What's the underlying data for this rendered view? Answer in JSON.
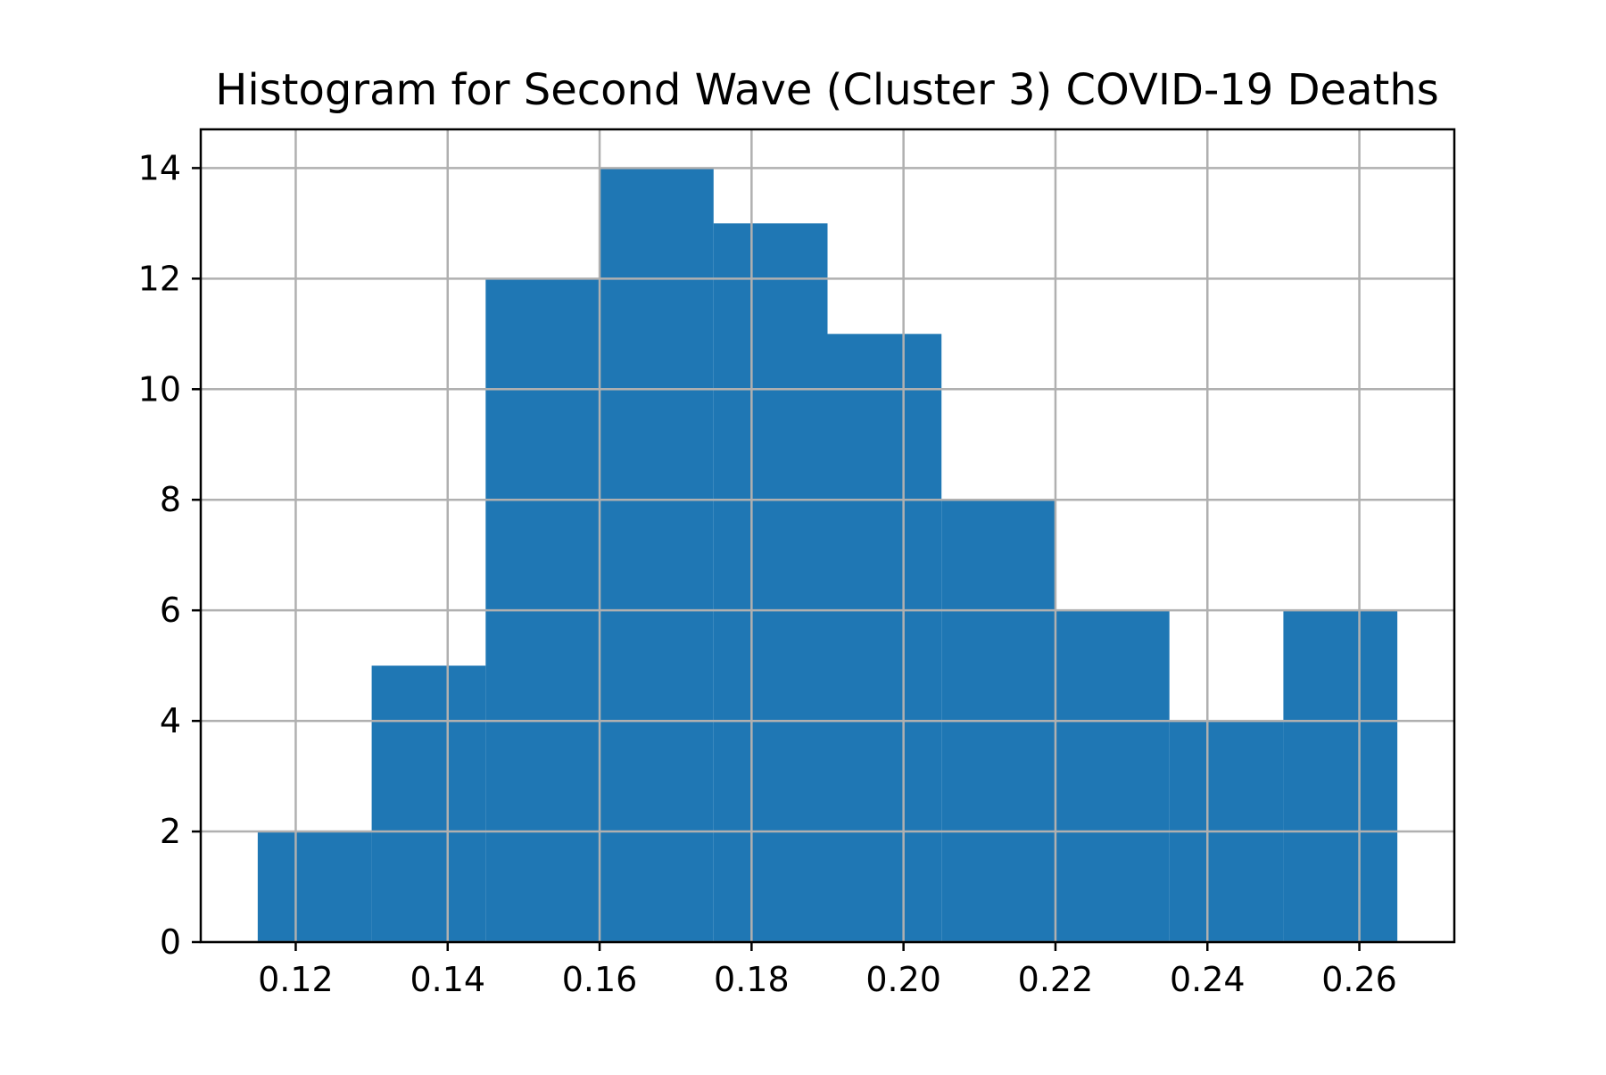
{
  "chart_data": {
    "type": "bar",
    "title": "Histogram for Second Wave (Cluster 3) COVID-19 Deaths",
    "xlabel": "",
    "ylabel": "",
    "bin_edges": [
      0.115,
      0.13,
      0.145,
      0.16,
      0.175,
      0.19,
      0.205,
      0.22,
      0.235,
      0.25,
      0.265
    ],
    "values": [
      2,
      5,
      12,
      14,
      13,
      11,
      8,
      6,
      4,
      6
    ],
    "xlim": [
      0.1075,
      0.2725
    ],
    "ylim": [
      0,
      14.7
    ],
    "xticks": [
      0.12,
      0.14,
      0.16,
      0.18,
      0.2,
      0.22,
      0.24,
      0.26
    ],
    "xtick_labels": [
      "0.12",
      "0.14",
      "0.16",
      "0.18",
      "0.20",
      "0.22",
      "0.24",
      "0.26"
    ],
    "yticks": [
      0,
      2,
      4,
      6,
      8,
      10,
      12,
      14
    ],
    "ytick_labels": [
      "0",
      "2",
      "4",
      "6",
      "8",
      "10",
      "12",
      "14"
    ],
    "grid": true,
    "bar_color": "#1f77b4",
    "grid_color": "#b0b0b0"
  }
}
